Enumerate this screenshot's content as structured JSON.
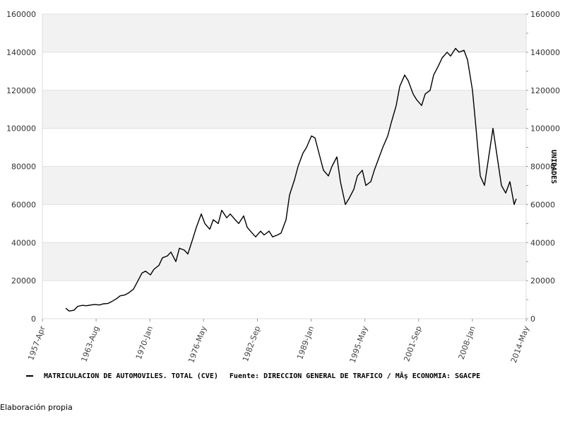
{
  "chart_data": {
    "type": "line",
    "ylabel_right": "UNIDADES",
    "ylim": [
      0,
      160000
    ],
    "y_ticks": [
      "0",
      "20000",
      "40000",
      "60000",
      "80000",
      "100000",
      "120000",
      "140000",
      "160000"
    ],
    "x_range": [
      "1957-04",
      "2014-05"
    ],
    "x_ticks": [
      "1957-Apr",
      "1963-Aug",
      "1970-Jan",
      "1976-May",
      "1982-Sep",
      "1989-Jan",
      "1995-May",
      "2001-Sep",
      "2008-Jan",
      "2014-May"
    ],
    "grid": "horizontal bands",
    "series": [
      {
        "name": "MATRICULACION DE AUTOMOVILES. TOTAL (CVE)",
        "color": "#000000",
        "points": [
          [
            "1960-01",
            5500
          ],
          [
            "1960-06",
            4000
          ],
          [
            "1961-01",
            4500
          ],
          [
            "1961-06",
            6500
          ],
          [
            "1962-01",
            7000
          ],
          [
            "1962-06",
            6800
          ],
          [
            "1963-01",
            7200
          ],
          [
            "1963-06",
            7500
          ],
          [
            "1964-01",
            7200
          ],
          [
            "1964-06",
            7800
          ],
          [
            "1965-01",
            8000
          ],
          [
            "1965-06",
            9000
          ],
          [
            "1966-01",
            10500
          ],
          [
            "1966-06",
            12000
          ],
          [
            "1967-01",
            12500
          ],
          [
            "1967-06",
            13500
          ],
          [
            "1968-01",
            15500
          ],
          [
            "1968-06",
            19000
          ],
          [
            "1969-01",
            24000
          ],
          [
            "1969-06",
            25000
          ],
          [
            "1970-01",
            23000
          ],
          [
            "1970-06",
            26000
          ],
          [
            "1971-01",
            28000
          ],
          [
            "1971-06",
            32000
          ],
          [
            "1972-01",
            33000
          ],
          [
            "1972-06",
            35000
          ],
          [
            "1973-01",
            30000
          ],
          [
            "1973-06",
            37000
          ],
          [
            "1974-01",
            36000
          ],
          [
            "1974-06",
            34000
          ],
          [
            "1975-01",
            42000
          ],
          [
            "1975-06",
            48000
          ],
          [
            "1976-01",
            55000
          ],
          [
            "1976-06",
            50000
          ],
          [
            "1977-01",
            47000
          ],
          [
            "1977-06",
            52000
          ],
          [
            "1978-01",
            50000
          ],
          [
            "1978-06",
            57000
          ],
          [
            "1979-01",
            53000
          ],
          [
            "1979-06",
            55000
          ],
          [
            "1980-01",
            52000
          ],
          [
            "1980-06",
            50000
          ],
          [
            "1981-01",
            54000
          ],
          [
            "1981-06",
            48000
          ],
          [
            "1982-01",
            45000
          ],
          [
            "1982-06",
            43000
          ],
          [
            "1983-01",
            46000
          ],
          [
            "1983-06",
            44000
          ],
          [
            "1984-01",
            46000
          ],
          [
            "1984-06",
            43000
          ],
          [
            "1985-01",
            44000
          ],
          [
            "1985-06",
            45000
          ],
          [
            "1986-01",
            52000
          ],
          [
            "1986-06",
            65000
          ],
          [
            "1987-01",
            73000
          ],
          [
            "1987-06",
            80000
          ],
          [
            "1988-01",
            87000
          ],
          [
            "1988-06",
            90000
          ],
          [
            "1989-01",
            96000
          ],
          [
            "1989-06",
            95000
          ],
          [
            "1990-01",
            85000
          ],
          [
            "1990-06",
            78000
          ],
          [
            "1991-01",
            75000
          ],
          [
            "1991-06",
            80000
          ],
          [
            "1992-01",
            85000
          ],
          [
            "1992-06",
            72000
          ],
          [
            "1993-01",
            60000
          ],
          [
            "1993-06",
            63000
          ],
          [
            "1994-01",
            68000
          ],
          [
            "1994-06",
            75000
          ],
          [
            "1995-01",
            78000
          ],
          [
            "1995-06",
            70000
          ],
          [
            "1996-01",
            72000
          ],
          [
            "1996-06",
            78000
          ],
          [
            "1997-01",
            85000
          ],
          [
            "1997-06",
            90000
          ],
          [
            "1998-01",
            96000
          ],
          [
            "1998-06",
            103000
          ],
          [
            "1999-01",
            112000
          ],
          [
            "1999-06",
            122000
          ],
          [
            "2000-01",
            128000
          ],
          [
            "2000-06",
            125000
          ],
          [
            "2001-01",
            118000
          ],
          [
            "2001-06",
            115000
          ],
          [
            "2002-01",
            112000
          ],
          [
            "2002-06",
            118000
          ],
          [
            "2003-01",
            120000
          ],
          [
            "2003-06",
            128000
          ],
          [
            "2004-01",
            133000
          ],
          [
            "2004-06",
            137000
          ],
          [
            "2005-01",
            140000
          ],
          [
            "2005-06",
            138000
          ],
          [
            "2006-01",
            142000
          ],
          [
            "2006-06",
            140000
          ],
          [
            "2007-01",
            141000
          ],
          [
            "2007-06",
            136000
          ],
          [
            "2008-01",
            120000
          ],
          [
            "2008-06",
            100000
          ],
          [
            "2008-12",
            75000
          ],
          [
            "2009-06",
            70000
          ],
          [
            "2009-12",
            85000
          ],
          [
            "2010-06",
            100000
          ],
          [
            "2010-12",
            85000
          ],
          [
            "2011-06",
            70000
          ],
          [
            "2011-12",
            66000
          ],
          [
            "2012-06",
            72000
          ],
          [
            "2012-12",
            60000
          ],
          [
            "2013-03",
            63000
          ]
        ]
      }
    ],
    "legend_source": "Fuente: DIRECCION GENERAL DE TRAFICO / MÂş ECONOMIA: SGACPE",
    "footer_note": "Elaboración propia"
  }
}
